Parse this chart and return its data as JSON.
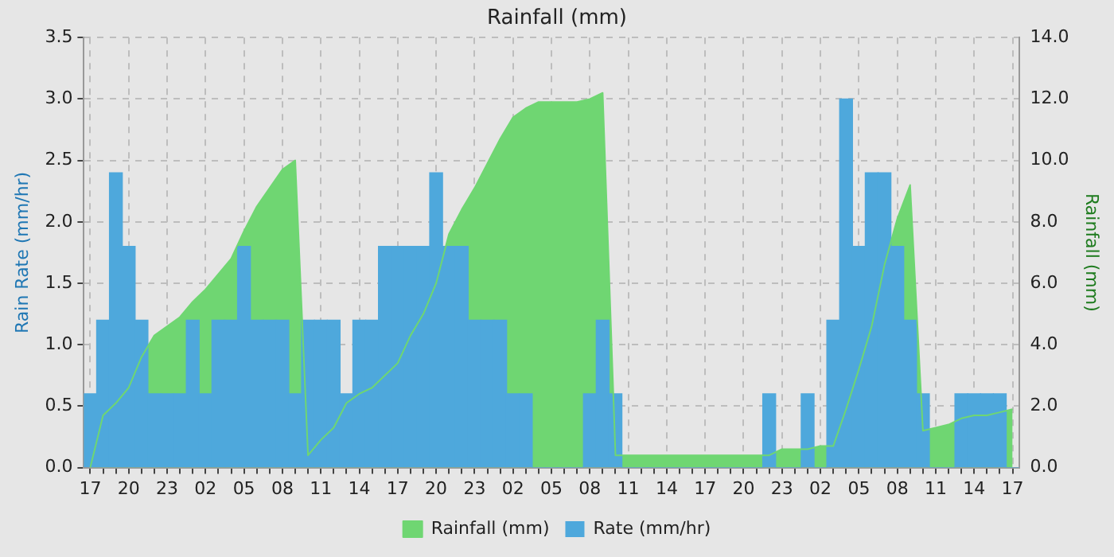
{
  "chart_data": {
    "type": "bar",
    "title": "Rainfall (mm)",
    "ylabel": "Rain Rate (mm/hr)",
    "y2label": "Rainfall (mm)",
    "categories": [
      "17",
      null,
      null,
      "20",
      null,
      null,
      "23",
      null,
      null,
      "02",
      null,
      null,
      "05",
      null,
      null,
      "08",
      null,
      null,
      "11",
      null,
      null,
      "14",
      null,
      null,
      "17",
      null,
      null,
      "20",
      null,
      null,
      "23",
      null,
      null,
      "02",
      null,
      null,
      "05",
      null,
      null,
      "08",
      null,
      null,
      "11",
      null,
      null,
      "14",
      null,
      null,
      "17",
      null,
      null,
      "20",
      null,
      null,
      "23",
      null,
      null,
      "02",
      null,
      null,
      "05",
      null,
      null,
      "08",
      null,
      null,
      "11",
      null,
      null,
      "14",
      null,
      null,
      "17"
    ],
    "ylim": [
      0,
      3.5
    ],
    "yticks": [
      {
        "value": 0,
        "label": "0.0"
      },
      0.5,
      {
        "value": 1,
        "label": "1.0"
      },
      1.5,
      {
        "value": 2,
        "label": "2.0"
      },
      2.5,
      {
        "value": 3,
        "label": "3.0"
      },
      3.5
    ],
    "y2lim": [
      0,
      14
    ],
    "y2ticks": [
      {
        "value": 0,
        "label": "0.0"
      },
      {
        "value": 2,
        "label": "2.0"
      },
      {
        "value": 4,
        "label": "4.0"
      },
      {
        "value": 6,
        "label": "6.0"
      },
      {
        "value": 8,
        "label": "8.0"
      },
      {
        "value": 10,
        "label": "10.0"
      },
      {
        "value": 12,
        "label": "12.0"
      },
      {
        "value": 14,
        "label": "14.0"
      }
    ],
    "grid": true,
    "legend": "bottom",
    "series": [
      {
        "name": "Rate (mm/hr)",
        "color": "#4ea8dc",
        "values": [
          0.6,
          1.2,
          2.4,
          1.8,
          1.2,
          0.6,
          0.6,
          0.6,
          1.2,
          0.6,
          1.2,
          1.2,
          1.8,
          1.2,
          1.2,
          1.2,
          0.6,
          1.2,
          1.2,
          1.2,
          0.6,
          1.2,
          1.2,
          1.8,
          1.8,
          1.8,
          1.8,
          2.4,
          1.8,
          1.8,
          1.2,
          1.2,
          1.2,
          0.6,
          0.6,
          0,
          0,
          0,
          0,
          0.6,
          1.2,
          0.6,
          0,
          0,
          0,
          0,
          0,
          0,
          0,
          0,
          0,
          0,
          0,
          0.6,
          0,
          0,
          0.6,
          0,
          1.2,
          3.0,
          1.8,
          2.4,
          2.4,
          1.8,
          1.2,
          0.6,
          0,
          0,
          0.6,
          0.6,
          0.6,
          0.6,
          0
        ]
      },
      {
        "name": "Rainfall (mm)",
        "type": "area",
        "axis": "y2",
        "color": "#6fd672",
        "values": [
          0,
          1.7,
          2.1,
          2.6,
          3.6,
          4.3,
          4.6,
          4.9,
          5.4,
          5.8,
          6.3,
          6.8,
          7.7,
          8.5,
          9.1,
          9.7,
          10.0,
          0.4,
          0.9,
          1.3,
          2.1,
          2.4,
          2.6,
          3.0,
          3.4,
          4.3,
          5.0,
          6.0,
          7.6,
          8.4,
          9.1,
          9.9,
          10.7,
          11.4,
          11.7,
          11.9,
          11.9,
          11.9,
          11.9,
          12.0,
          12.2,
          0.4,
          0.4,
          0.4,
          0.4,
          0.4,
          0.4,
          0.4,
          0.4,
          0.4,
          0.4,
          0.4,
          0.4,
          0.4,
          0.6,
          0.6,
          0.6,
          0.7,
          0.7,
          1.9,
          3.2,
          4.6,
          6.6,
          8.1,
          9.2,
          1.2,
          1.3,
          1.4,
          1.6,
          1.7,
          1.7,
          1.8,
          1.9
        ]
      }
    ]
  }
}
